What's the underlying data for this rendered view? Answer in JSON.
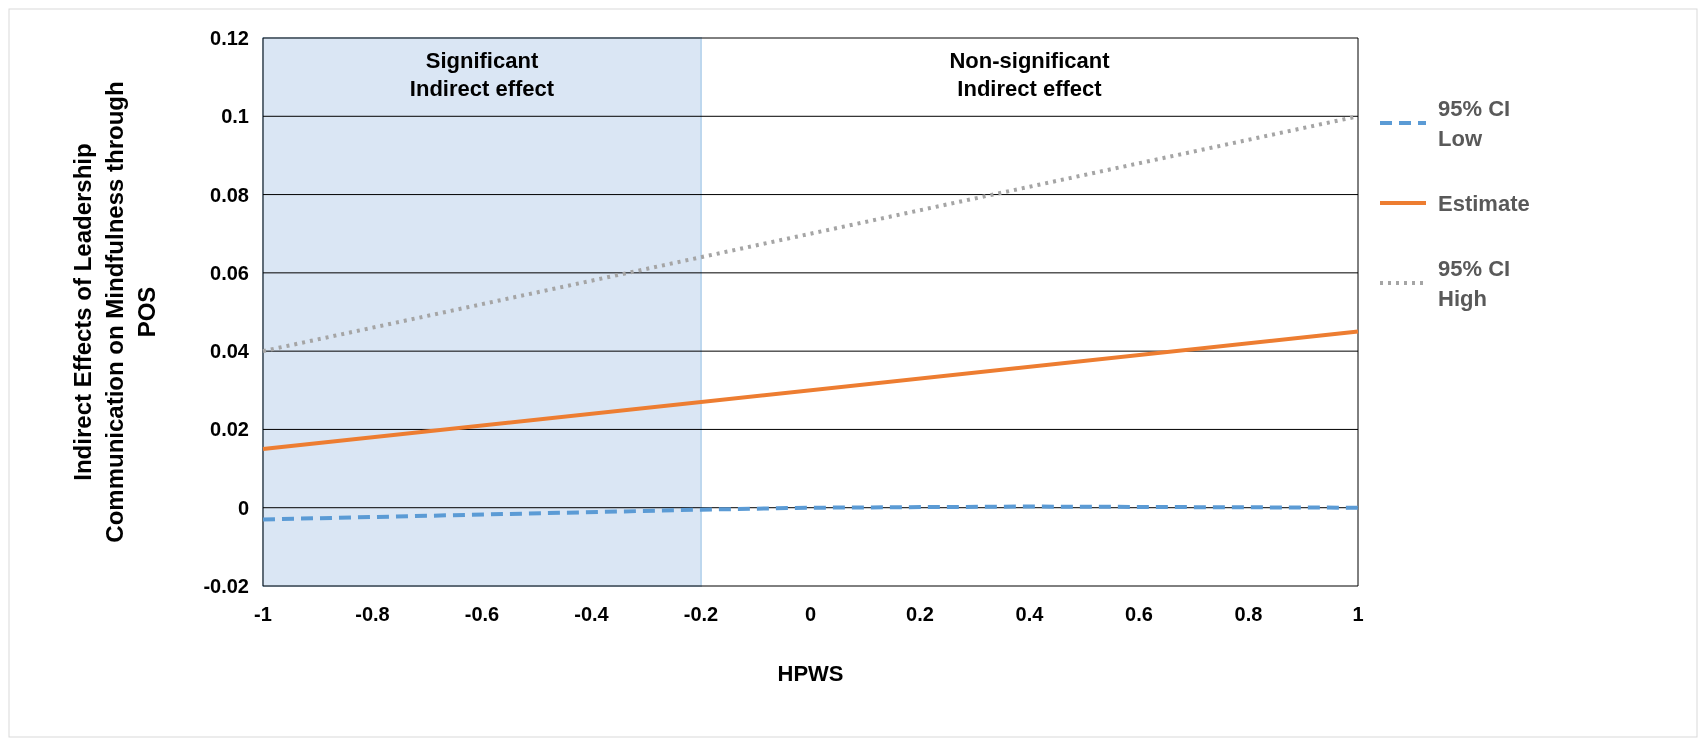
{
  "chart_data": {
    "type": "line",
    "xlabel": "HPWS",
    "ylabel": "Indirect Effects of Leadership Communication on Mindfulness through POS",
    "xlim": [
      -1,
      1
    ],
    "xticks": [
      -1,
      -0.8,
      -0.6,
      -0.4,
      -0.2,
      0,
      0.2,
      0.4,
      0.6,
      0.8,
      1
    ],
    "ylim": [
      -0.02,
      0.12
    ],
    "yticks": [
      -0.02,
      0,
      0.02,
      0.04,
      0.06,
      0.08,
      0.1,
      0.12
    ],
    "grid": "y",
    "legend": "right",
    "marker": "none",
    "bands": [
      {
        "axis": "x",
        "from": -1,
        "to": -0.2,
        "label": "Significant\nIndirect effect",
        "color": "#dae6f4"
      }
    ],
    "annotations": [
      "Non-significant\nIndirect effect"
    ],
    "series": [
      {
        "name": "95% CI Low",
        "color": "#5b9bd5",
        "line_style": "dashed",
        "x": [
          -1,
          -0.2,
          0,
          0.4,
          1
        ],
        "values": [
          -0.003,
          -0.0005,
          0,
          0.0003,
          0
        ]
      },
      {
        "name": "Estimate",
        "color": "#ed7d31",
        "line_style": "solid",
        "x": [
          -1,
          1
        ],
        "values": [
          0.015,
          0.045
        ]
      },
      {
        "name": "95% CI High",
        "color": "#a5a5a5",
        "line_style": "dotted",
        "x": [
          -1,
          1
        ],
        "values": [
          0.04,
          0.1
        ]
      }
    ]
  }
}
